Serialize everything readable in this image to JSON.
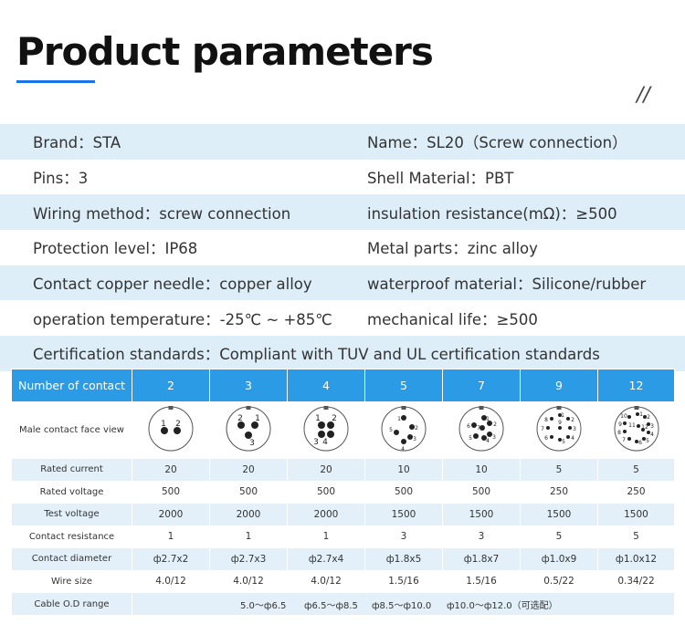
{
  "header": {
    "title": "Product parameters",
    "slashes": "//"
  },
  "params": [
    {
      "left": "Brand：STA",
      "right": "Name：SL20（Screw connection）"
    },
    {
      "left": "Pins：3",
      "right": "Shell Material：PBT"
    },
    {
      "left": "Wiring method：screw connection",
      "right": "insulation resistance(mΩ)：≥500"
    },
    {
      "left": "Protection level：IP68",
      "right": "Metal parts：zinc alloy"
    },
    {
      "left": "Contact copper needle：copper alloy",
      "right": "waterproof material：Silicone/rubber"
    },
    {
      "left": "operation temperature：-25℃ ~ +85℃",
      "right": "mechanical life：≥500"
    },
    {
      "left": "Certification standards：Compliant with TUV and UL certification standards",
      "right": ""
    }
  ],
  "table": {
    "header_label": "Number of contact",
    "contacts": [
      "2",
      "3",
      "4",
      "5",
      "7",
      "9",
      "12"
    ],
    "face_row_label": "Male contact face view",
    "faces": [
      {
        "pins": [
          "1",
          "2"
        ]
      },
      {
        "pins": [
          "2",
          "1",
          "3"
        ]
      },
      {
        "pins": [
          "1",
          "2",
          "4",
          "3"
        ]
      },
      {
        "pins": [
          "1",
          "2",
          "3",
          "4",
          "5"
        ]
      },
      {
        "pins": [
          "1",
          "2",
          "3",
          "4",
          "5",
          "6",
          "7"
        ]
      },
      {
        "pins": [
          "1",
          "2",
          "3",
          "4",
          "5",
          "6",
          "7",
          "8",
          "9"
        ]
      },
      {
        "pins": [
          "1",
          "2",
          "3",
          "4",
          "5",
          "6",
          "7",
          "8",
          "9",
          "10",
          "11",
          "12"
        ]
      }
    ],
    "rows": [
      {
        "label": "Rated current",
        "values": [
          "20",
          "20",
          "20",
          "10",
          "10",
          "5",
          "5"
        ]
      },
      {
        "label": "Rated voltage",
        "values": [
          "500",
          "500",
          "500",
          "500",
          "500",
          "250",
          "250"
        ]
      },
      {
        "label": "Test voltage",
        "values": [
          "2000",
          "2000",
          "2000",
          "1500",
          "1500",
          "1500",
          "1500"
        ]
      },
      {
        "label": "Contact resistance",
        "values": [
          "1",
          "1",
          "1",
          "3",
          "3",
          "5",
          "5"
        ]
      },
      {
        "label": "Contact diameter",
        "values": [
          "ф2.7x2",
          "ф2.7x3",
          "ф2.7x4",
          "ф1.8x5",
          "ф1.8x7",
          "ф1.0x9",
          "ф1.0x12"
        ]
      },
      {
        "label": "Wire size",
        "values": [
          "4.0/12",
          "4.0/12",
          "4.0/12",
          "1.5/16",
          "1.5/16",
          "0.5/22",
          "0.34/22"
        ]
      }
    ],
    "cable": {
      "label": "Cable O.D range",
      "values": [
        "5.0～ф6.5",
        "ф6.5～ф8.5",
        "ф8.5～ф10.0",
        "ф10.0～ф12.0（可选配）"
      ]
    }
  }
}
